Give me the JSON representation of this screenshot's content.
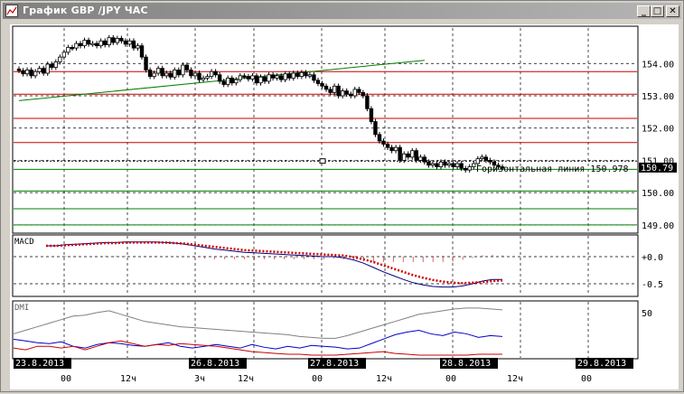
{
  "window": {
    "title": "График GBP /JPY ЧАС",
    "buttons": {
      "minimize": "_",
      "maximize": "□",
      "close": "✕"
    }
  },
  "colors": {
    "candle": "#000000",
    "resistance": "#cc0000",
    "support": "#008000",
    "trendline": "#008000",
    "macd_signal": "#cc0000",
    "macd_line": "#000080",
    "dmi_adx": "#808080",
    "dmi_plus": "#0000cc",
    "dmi_minus": "#cc0000",
    "date_label_bg": "#000000"
  },
  "price_panel": {
    "current_price": "150.79",
    "horizontal_line_label": "Горизонтальная линия  150.978",
    "y_ticks": [
      "154.00",
      "153.00",
      "152.00",
      "151.00",
      "150.00",
      "149.00"
    ]
  },
  "macd_panel": {
    "label": "MACD",
    "y_ticks": [
      "+0.0",
      "-0.5"
    ]
  },
  "dmi_panel": {
    "label": "DMI",
    "y_ticks": [
      "50"
    ]
  },
  "x_axis": {
    "dates": [
      "23.8.2013",
      "26.8.2013",
      "27.8.2013",
      "28.8.2013",
      "29.8.2013"
    ],
    "hours": [
      "00",
      "12ч",
      "3ч",
      "12ч",
      "00",
      "12ч",
      "00",
      "12ч",
      "00"
    ]
  },
  "chart_data": {
    "type": "candlestick",
    "instrument": "GBP/JPY",
    "timeframe": "H1",
    "ylim": [
      148.8,
      155.1
    ],
    "resistance_levels": [
      153.75,
      153.05,
      152.3,
      151.55
    ],
    "support_levels": [
      150.72,
      150.05,
      149.5,
      149.0
    ],
    "horizontal_line": 150.978,
    "trendline": {
      "from": {
        "t": 0,
        "v": 152.85
      },
      "to": {
        "t": 99,
        "v": 154.1
      }
    },
    "candles_close": [
      153.78,
      153.68,
      153.8,
      153.62,
      153.75,
      153.85,
      153.7,
      153.98,
      153.88,
      154.05,
      154.2,
      154.35,
      154.5,
      154.48,
      154.62,
      154.55,
      154.72,
      154.6,
      154.62,
      154.55,
      154.7,
      154.58,
      154.8,
      154.65,
      154.78,
      154.7,
      154.6,
      154.7,
      154.48,
      154.55,
      154.2,
      153.8,
      153.6,
      153.7,
      153.85,
      153.62,
      153.7,
      153.58,
      153.8,
      153.65,
      153.95,
      153.8,
      153.62,
      153.7,
      153.5,
      153.55,
      153.6,
      153.75,
      153.65,
      153.45,
      153.35,
      153.55,
      153.4,
      153.5,
      153.62,
      153.6,
      153.52,
      153.62,
      153.4,
      153.58,
      153.45,
      153.65,
      153.55,
      153.62,
      153.5,
      153.68,
      153.55,
      153.7,
      153.6,
      153.72,
      153.62,
      153.65,
      153.48,
      153.38,
      153.3,
      153.2,
      153.1,
      153.3,
      153.0,
      153.15,
      153.05,
      153.0,
      153.2,
      153.1,
      153.0,
      152.6,
      152.2,
      151.8,
      151.6,
      151.5,
      151.4,
      151.3,
      151.4,
      151.0,
      151.2,
      151.1,
      151.3,
      151.0,
      151.1,
      150.95,
      150.85,
      150.9,
      150.8,
      150.95,
      150.85,
      150.9,
      150.8,
      150.9,
      150.75,
      150.7,
      150.8,
      150.9,
      151.05,
      151.1,
      151.0,
      150.95,
      150.85,
      150.8,
      150.79
    ],
    "macd_ylim": [
      -0.7,
      0.35
    ],
    "macd": [
      0.2,
      0.2,
      0.22,
      0.23,
      0.24,
      0.25,
      0.26,
      0.26,
      0.27,
      0.27,
      0.27,
      0.27,
      0.26,
      0.25,
      0.23,
      0.2,
      0.17,
      0.14,
      0.12,
      0.1,
      0.08,
      0.07,
      0.06,
      0.05,
      0.04,
      0.03,
      0.02,
      0.01,
      0.0,
      0.0,
      -0.02,
      -0.06,
      -0.12,
      -0.2,
      -0.28,
      -0.35,
      -0.42,
      -0.48,
      -0.52,
      -0.55,
      -0.56,
      -0.56,
      -0.54,
      -0.5,
      -0.45,
      -0.42,
      -0.42
    ],
    "macd_signal": [
      0.2,
      0.2,
      0.21,
      0.22,
      0.23,
      0.24,
      0.25,
      0.25,
      0.26,
      0.26,
      0.26,
      0.26,
      0.26,
      0.25,
      0.24,
      0.22,
      0.2,
      0.18,
      0.16,
      0.14,
      0.12,
      0.11,
      0.1,
      0.09,
      0.08,
      0.07,
      0.06,
      0.05,
      0.04,
      0.03,
      0.02,
      -0.01,
      -0.05,
      -0.1,
      -0.16,
      -0.22,
      -0.28,
      -0.34,
      -0.39,
      -0.43,
      -0.46,
      -0.48,
      -0.49,
      -0.48,
      -0.47,
      -0.45,
      -0.44
    ],
    "dmi_ylim": [
      0,
      60
    ],
    "dmi_adx": [
      26,
      30,
      34,
      38,
      42,
      46,
      47,
      50,
      52,
      48,
      44,
      40,
      38,
      36,
      34,
      33,
      32,
      31,
      30,
      29,
      28,
      27,
      26,
      25,
      23,
      22,
      21,
      21,
      24,
      28,
      32,
      36,
      40,
      44,
      48,
      50,
      52,
      54,
      55,
      55,
      54,
      53
    ],
    "dmi_plus": [
      20,
      18,
      16,
      15,
      17,
      12,
      10,
      14,
      16,
      15,
      13,
      12,
      14,
      16,
      12,
      10,
      12,
      14,
      12,
      10,
      14,
      11,
      9,
      12,
      10,
      13,
      12,
      11,
      9,
      10,
      15,
      20,
      25,
      28,
      30,
      26,
      24,
      28,
      26,
      22,
      24,
      23
    ],
    "dmi_minus": [
      10,
      8,
      12,
      12,
      10,
      12,
      8,
      12,
      16,
      18,
      15,
      12,
      14,
      13,
      15,
      14,
      13,
      12,
      10,
      8,
      6,
      5,
      4,
      3,
      3,
      2,
      2,
      2,
      3,
      4,
      5,
      6,
      4,
      3,
      2,
      2,
      2,
      2,
      2,
      3,
      3,
      3
    ]
  }
}
